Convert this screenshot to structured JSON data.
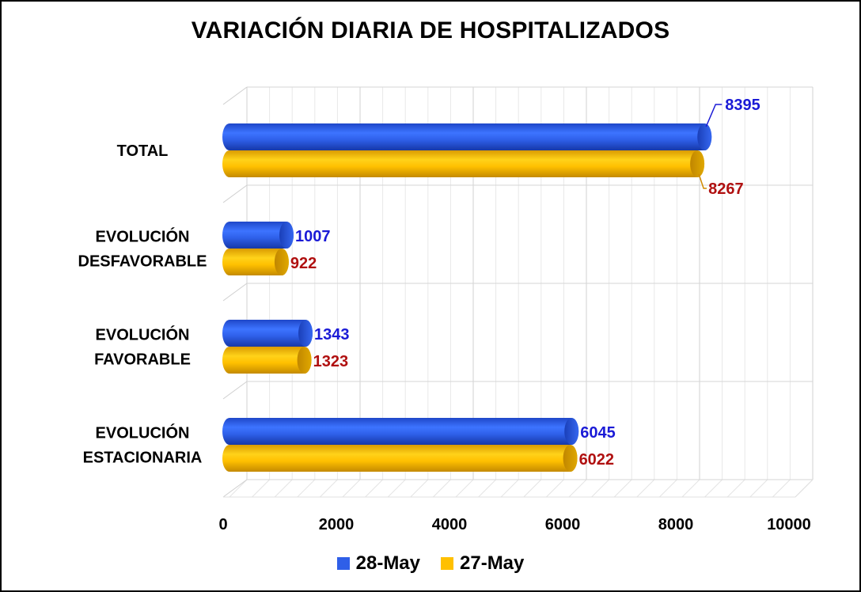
{
  "chart_data": {
    "type": "bar",
    "orientation": "horizontal",
    "title": "VARIACIÓN DIARIA DE HOSPITALIZADOS",
    "categories": [
      [
        "TOTAL"
      ],
      [
        "EVOLUCIÓN",
        "DESFAVORABLE"
      ],
      [
        "EVOLUCIÓN",
        "FAVORABLE"
      ],
      [
        "EVOLUCIÓN",
        "ESTACIONARIA"
      ]
    ],
    "series": [
      {
        "name": "28-May",
        "values": [
          8395,
          1007,
          1343,
          6045
        ],
        "color": "#2f5fe8",
        "label_color": "#1a1ad6"
      },
      {
        "name": "27-May",
        "values": [
          8267,
          922,
          1323,
          6022
        ],
        "color": "#ffc000",
        "label_color": "#b01010"
      }
    ],
    "xlim": [
      0,
      10000
    ],
    "xticks": [
      "0",
      "2000",
      "4000",
      "6000",
      "8000",
      "10000"
    ],
    "grid": true,
    "legend_position": "bottom"
  }
}
